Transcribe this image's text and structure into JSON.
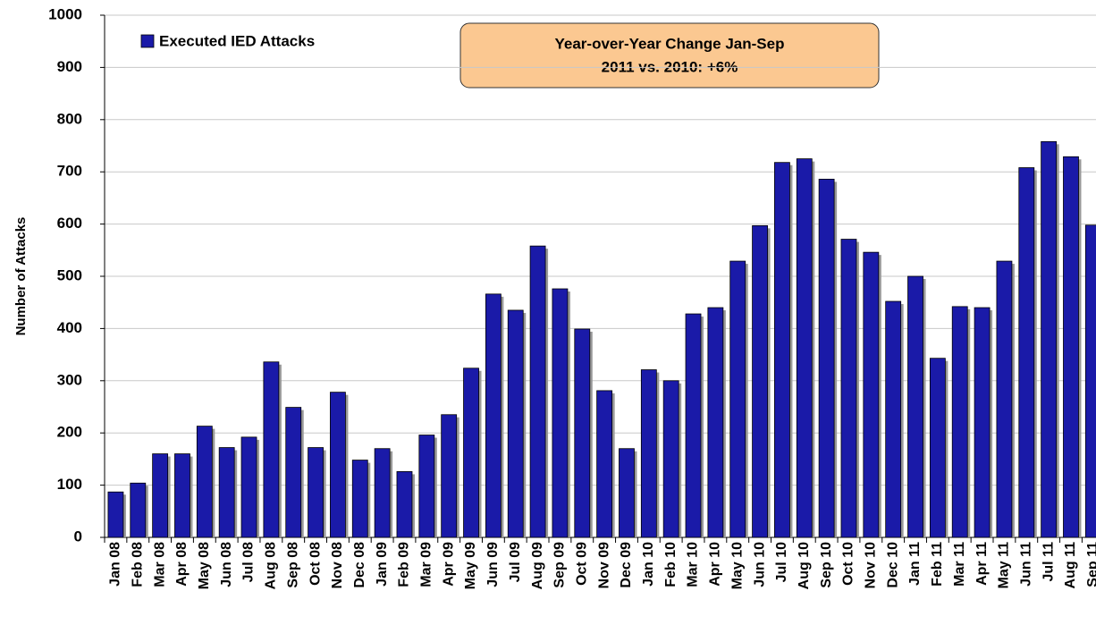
{
  "chart_data": {
    "type": "bar",
    "y_label": "Number of Attacks",
    "annotation": [
      "Year-over-Year Change Jan-Sep",
      "2011 vs. 2010:  +6%"
    ],
    "categories": [
      "Jan 08",
      "Feb 08",
      "Mar 08",
      "Apr 08",
      "May 08",
      "Jun 08",
      "Jul 08",
      "Aug 08",
      "Sep 08",
      "Oct 08",
      "Nov 08",
      "Dec 08",
      "Jan 09",
      "Feb 09",
      "Mar 09",
      "Apr 09",
      "May 09",
      "Jun 09",
      "Jul 09",
      "Aug 09",
      "Sep 09",
      "Oct 09",
      "Nov 09",
      "Dec 09",
      "Jan 10",
      "Feb 10",
      "Mar 10",
      "Apr 10",
      "May 10",
      "Jun 10",
      "Jul 10",
      "Aug 10",
      "Sep 10",
      "Oct 10",
      "Nov 10",
      "Dec 10",
      "Jan 11",
      "Feb 11",
      "Mar 11",
      "Apr 11",
      "May 11",
      "Jun 11",
      "Jul 11",
      "Aug 11",
      "Sep 11"
    ],
    "series": [
      {
        "name": "Executed IED Attacks",
        "color": "#1a1aa8",
        "values": [
          87,
          104,
          160,
          160,
          213,
          172,
          192,
          336,
          249,
          172,
          278,
          148,
          170,
          126,
          196,
          235,
          324,
          466,
          435,
          558,
          476,
          399,
          281,
          170,
          321,
          300,
          428,
          440,
          529,
          597,
          718,
          725,
          686,
          571,
          546,
          452,
          500,
          343,
          442,
          440,
          529,
          708,
          758,
          729,
          598
        ]
      }
    ],
    "ylim": [
      0,
      1000
    ],
    "yticks": [
      0,
      100,
      200,
      300,
      400,
      500,
      600,
      700,
      800,
      900,
      1000
    ],
    "grid": true
  }
}
